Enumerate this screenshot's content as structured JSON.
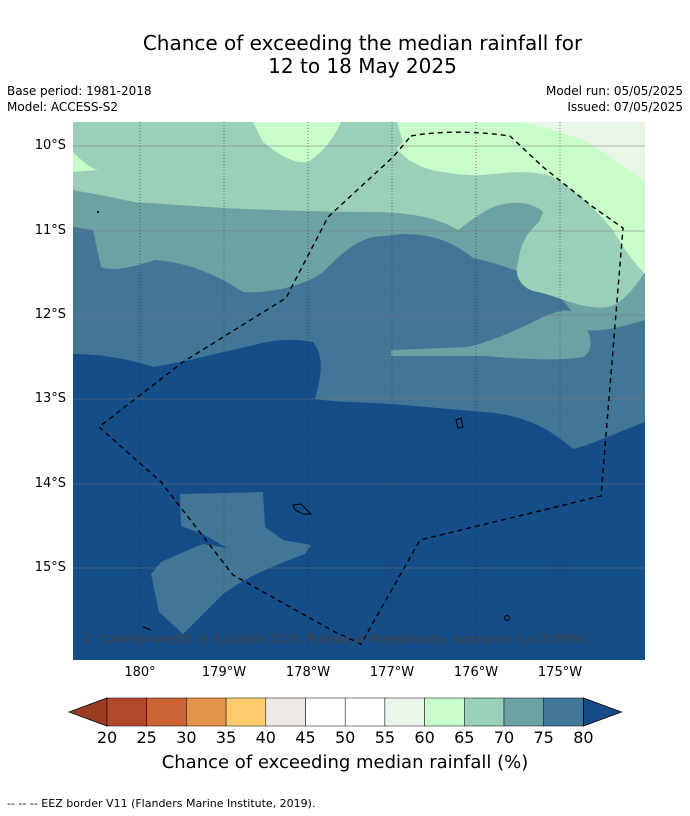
{
  "title_line1": "Chance of exceeding the median rainfall for",
  "title_line2": "12 to 18 May 2025",
  "meta": {
    "base_period": "Base period: 1981-2018",
    "model": "Model: ACCESS-S2",
    "model_run": "Model run: 05/05/2025",
    "issued": "Issued: 07/05/2025"
  },
  "map": {
    "lat_labels": [
      "10°S",
      "11°S",
      "12°S",
      "13°S",
      "14°S",
      "15°S"
    ],
    "lon_labels": [
      "180°",
      "179°W",
      "178°W",
      "177°W",
      "176°W",
      "175°W"
    ],
    "copyright": "© Commonwealth of Australia 2025, Bureau of Meteorology, supported by COSPPac",
    "colors": {
      "c55_60": "#eaf5e9",
      "c60_65": "#c8fcc9",
      "c65_70": "#9bd0b8",
      "c70_75": "#6ba2a4",
      "c75_80": "#417696",
      "c80": "#144d88"
    }
  },
  "colorbar": {
    "ticks": [
      "20",
      "25",
      "30",
      "35",
      "40",
      "45",
      "50",
      "55",
      "60",
      "65",
      "70",
      "75",
      "80"
    ],
    "colors": [
      "#b2482a",
      "#cc6535",
      "#e2944d",
      "#fecb6e",
      "#ece8e3",
      "#ffffff",
      "#ffffff",
      "#eaf5e9",
      "#c8fcc9",
      "#9bd0b8",
      "#6ba2a4",
      "#417696"
    ],
    "low_extend_color": "#9a3d24",
    "high_extend_color": "#144d88",
    "label": "Chance of exceeding median rainfall (%)"
  },
  "footnote": "--  --  -- EEZ border V11 (Flanders Marine Institute, 2019)."
}
